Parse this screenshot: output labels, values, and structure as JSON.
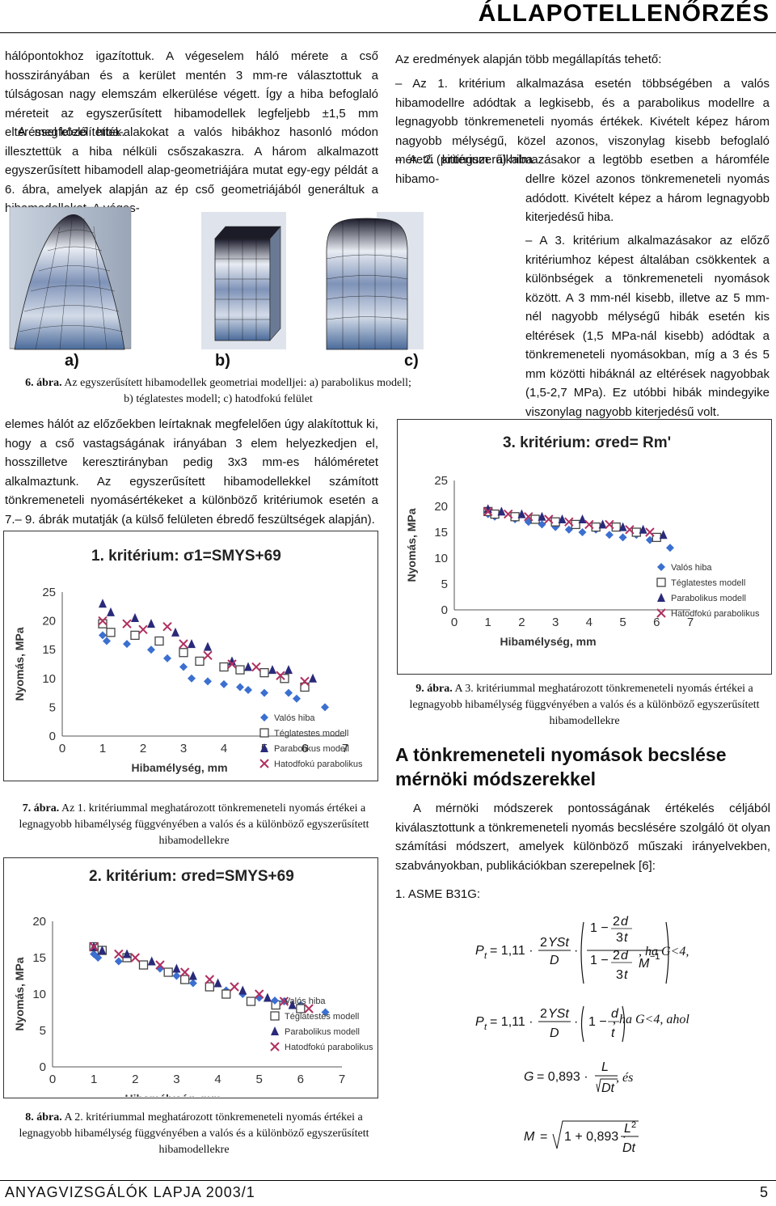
{
  "header": {
    "section": "ÁLLAPOTELLENŐRZÉS"
  },
  "left_col": {
    "para1": "hálópontokhoz igazítottuk. A végeselem háló mérete a cső hosszirányában és a kerület mentén 3 mm-re választottuk a túlságosan nagy elemszám elkerülése végett. Így a hiba befoglaló méreteit az egyszerűsített hibamodellek legfeljebb ±1,5 mm eltéréssel közelítették.",
    "para2": "A megfelelő hiba-alakokat a valós hibákhoz hasonló módon illesztettük a hiba nélküli csőszakaszra. A három alkalmazott egyszerűsített hibamodell alap-geometriájára mutat egy-egy példát a 6. ábra, amelyek alapján az ép cső geometriájából generáltuk a hibamodelleket. A véges-",
    "para3": "elemes hálót az előzőekben leírtaknak megfelelően úgy alakítottuk ki, hogy a cső vastagságának irányában 3 elem helyezkedjen el, hosszilletve keresztirányban pedig 3x3 mm-es hálóméretet alkalmaztunk. Az egyszerűsített hibamodellekkel számított tönkremeneteli nyomásértékeket a különböző kritériumok esetén a 7.– 9. ábrák mutatják (a külső felületen ébredő feszültségek alapján)."
  },
  "fig6": {
    "labels": [
      "a)",
      "b)",
      "c)"
    ],
    "caption_num": "6. ábra.",
    "caption_text": "Az egyszerűsített hibamodellek geometriai modelljei: a) parabolikus modell; b) téglatestes modell; c) hatodfokú felület"
  },
  "right_col": {
    "intro": "Az eredmények alapján több megállapítás tehető:",
    "item1": "– Az 1. kritérium alkalmazása esetén többségében a valós hibamodellre adódtak a legkisebb, és a parabolikus modellre a legnagyobb tönkremeneteli nyomás értékek. Kivételt képez három nagyobb mélységű, közel azonos, viszonylag kisebb befoglaló méretű (pittingszerű) hiba.",
    "item2a": "– A 2. kritérium alkalmazásakor a legtöbb esetben a háromféle hibamo-",
    "item2b": "dellre közel azonos tönkremeneteli nyomás adódott. Kivételt képez a három legnagyobb kiterjedésű hiba.",
    "item3": "– A 3. kritérium alkalmazásakor az előző kritériumhoz képest általában csökkentek a különbségek a tönkremeneteli nyomások között. A 3 mm-nél kisebb, illetve az 5 mm-nél nagyobb mélységű hibák esetén kis eltérések (1,5 MPa-nál kisebb) adódtak a tönkremeneteli nyomásokban, míg a 3 és 5 mm közötti hibáknál az eltérések nagyobbak (1,5-2,7 MPa). Ez utóbbi hibák mindegyike viszonylag nagyobb kiterjedésű volt.",
    "fig9_caption_num": "9. ábra.",
    "fig9_caption_text": "A 3. kritériummal meghatározott tönkremeneteli nyomás értékei a legnagyobb hibamélység függvényében a valós és a különböző egyszerűsített hibamodellekre",
    "heading": "A tönkremeneteli nyomások becslése mérnöki módszerekkel",
    "para_methods": "A mérnöki módszerek pontosságának értékelés céljából kiválasztottunk a tönkremeneteli nyomás becslésére szolgáló öt olyan számítási módszert, amelyek különböző műszaki irányelvekben, szabványokban, publikációkban szerepelnek [6]:",
    "asme": "1. ASME B31G:"
  },
  "fig7": {
    "caption_num": "7. ábra.",
    "caption_text": "Az 1. kritériummal meghatározott tönkremeneteli nyomás értékei a legnagyobb hibamélység függvényében a valós és a különböző egyszerűsített hibamodellekre"
  },
  "fig8": {
    "caption_num": "8. ábra.",
    "caption_text": "A 2. kritériummal meghatározott tönkremeneteli nyomás értékei a legnagyobb hibamélység függvényében a valós és a különböző egyszerűsített hibamodellekre"
  },
  "formulas": {
    "f1_cond": ", ha G<4,",
    "f2_cond": ", ha G<4, ahol",
    "f3_tail": ", és"
  },
  "footer": {
    "journal": "ANYAGVIZSGÁLÓK LAPJA 2003/1",
    "page": "5"
  },
  "chart_data": [
    {
      "type": "scatter",
      "title": "1. kritérium: σ1=SMYS+69",
      "xlabel": "Hibamélység, mm",
      "ylabel": "Nyomás, MPa",
      "xlim": [
        0,
        7
      ],
      "ylim": [
        0,
        25
      ],
      "xticks": [
        0,
        1,
        2,
        3,
        4,
        5,
        6,
        7
      ],
      "yticks": [
        0,
        5,
        10,
        15,
        20,
        25
      ],
      "legend": "bottom-right",
      "series": [
        {
          "name": "Valós hiba",
          "marker": "diamond",
          "color": "#3b6fd0",
          "x": [
            1.0,
            1.1,
            1.6,
            2.2,
            2.6,
            3.0,
            3.2,
            3.6,
            4.0,
            4.4,
            4.6,
            5.0,
            5.6,
            5.8,
            6.5
          ],
          "y": [
            17.5,
            16.5,
            16.0,
            15.0,
            13.5,
            12.0,
            10.0,
            9.5,
            9.0,
            8.5,
            8.0,
            7.5,
            7.5,
            6.5,
            5.0
          ]
        },
        {
          "name": "Téglatestes modell",
          "marker": "square-open",
          "color": "#444444",
          "x": [
            1.0,
            1.2,
            1.8,
            2.4,
            3.0,
            3.4,
            4.0,
            4.4,
            5.0,
            5.5,
            6.0
          ],
          "y": [
            19.5,
            18.0,
            17.5,
            16.5,
            14.5,
            13.0,
            12.0,
            11.5,
            11.0,
            10.0,
            8.5
          ]
        },
        {
          "name": "Parabolikus modell",
          "marker": "triangle",
          "color": "#2a2a7a",
          "x": [
            1.0,
            1.2,
            1.8,
            2.2,
            2.8,
            3.2,
            3.6,
            4.2,
            4.6,
            5.2,
            5.6,
            6.2
          ],
          "y": [
            23.0,
            21.5,
            20.5,
            19.5,
            18.0,
            16.0,
            15.5,
            13.0,
            12.0,
            11.5,
            11.5,
            10.0
          ]
        },
        {
          "name": "Hatodfokú parabolikus",
          "marker": "x",
          "color": "#b03060",
          "x": [
            1.0,
            1.6,
            2.0,
            2.6,
            3.0,
            3.6,
            4.2,
            4.8,
            5.4,
            6.0
          ],
          "y": [
            20.0,
            19.5,
            18.5,
            19.0,
            16.0,
            14.0,
            12.5,
            12.0,
            10.5,
            9.5
          ]
        }
      ]
    },
    {
      "type": "scatter",
      "title": "2. kritérium: σred=SMYS+69",
      "xlabel": "Hibamélység, mm",
      "ylabel": "Nyomás, MPa",
      "xlim": [
        0,
        7
      ],
      "ylim": [
        0,
        20
      ],
      "xticks": [
        0,
        1,
        2,
        3,
        4,
        5,
        6,
        7
      ],
      "yticks": [
        0,
        5,
        10,
        15,
        20
      ],
      "legend": "bottom-right",
      "series": [
        {
          "name": "Valós hiba",
          "marker": "diamond",
          "color": "#3b6fd0",
          "x": [
            1.0,
            1.1,
            1.6,
            2.2,
            2.6,
            3.0,
            3.4,
            3.8,
            4.2,
            4.6,
            5.0,
            5.6,
            6.0,
            6.6
          ],
          "y": [
            15.5,
            15.0,
            14.5,
            14.0,
            13.5,
            12.5,
            11.5,
            11.0,
            10.5,
            10.0,
            9.5,
            9.0,
            8.5,
            7.5
          ]
        },
        {
          "name": "Téglatestes modell",
          "marker": "square-open",
          "color": "#444444",
          "x": [
            1.0,
            1.2,
            1.8,
            2.2,
            2.8,
            3.2,
            3.8,
            4.2,
            4.8,
            5.4,
            6.0
          ],
          "y": [
            16.5,
            16.0,
            15.0,
            14.0,
            13.0,
            12.0,
            11.0,
            10.0,
            9.0,
            8.5,
            8.0
          ]
        },
        {
          "name": "Parabolikus modell",
          "marker": "triangle",
          "color": "#2a2a7a",
          "x": [
            1.0,
            1.2,
            1.8,
            2.4,
            3.0,
            3.4,
            4.0,
            4.6,
            5.2,
            5.8
          ],
          "y": [
            16.5,
            16.0,
            15.5,
            14.5,
            13.5,
            12.5,
            11.5,
            10.5,
            9.5,
            8.5
          ]
        },
        {
          "name": "Hatodfokú parabolikus",
          "marker": "x",
          "color": "#b03060",
          "x": [
            1.0,
            1.6,
            2.0,
            2.6,
            3.2,
            3.8,
            4.4,
            5.0,
            5.6,
            6.2
          ],
          "y": [
            16.5,
            15.5,
            15.0,
            14.0,
            13.0,
            12.0,
            11.0,
            10.0,
            9.0,
            8.0
          ]
        }
      ]
    },
    {
      "type": "scatter",
      "title": "3. kritérium: σred= Rm'",
      "xlabel": "Hibamélység, mm",
      "ylabel": "Nyomás, MPa",
      "xlim": [
        0,
        7
      ],
      "ylim": [
        0,
        25
      ],
      "xticks": [
        0,
        1,
        2,
        3,
        4,
        5,
        6,
        7
      ],
      "yticks": [
        0,
        5,
        10,
        15,
        20,
        25
      ],
      "legend": "bottom-right",
      "series": [
        {
          "name": "Valós hiba",
          "marker": "diamond",
          "color": "#3b6fd0",
          "x": [
            1.0,
            1.2,
            1.8,
            2.2,
            2.6,
            3.0,
            3.4,
            3.8,
            4.2,
            4.6,
            5.0,
            5.4,
            5.8,
            6.4
          ],
          "y": [
            18.5,
            18.0,
            17.5,
            17.0,
            16.5,
            16.0,
            15.5,
            15.0,
            15.5,
            14.5,
            14.0,
            14.5,
            13.5,
            12.0
          ]
        },
        {
          "name": "Téglatestes modell",
          "marker": "square-open",
          "color": "#444444",
          "x": [
            1.0,
            1.2,
            1.8,
            2.4,
            3.0,
            3.6,
            4.2,
            4.8,
            5.4,
            6.0
          ],
          "y": [
            19.0,
            18.5,
            18.0,
            17.5,
            17.0,
            16.5,
            16.0,
            16.0,
            15.0,
            14.0
          ]
        },
        {
          "name": "Parabolikus modell",
          "marker": "triangle",
          "color": "#2a2a7a",
          "x": [
            1.0,
            1.4,
            2.0,
            2.6,
            3.2,
            3.8,
            4.4,
            5.0,
            5.6,
            6.2
          ],
          "y": [
            19.5,
            19.0,
            18.5,
            18.0,
            17.5,
            17.5,
            16.5,
            16.0,
            15.5,
            14.5
          ]
        },
        {
          "name": "Hatodfokú parabolikus",
          "marker": "x",
          "color": "#b03060",
          "x": [
            1.0,
            1.6,
            2.2,
            2.8,
            3.4,
            4.0,
            4.6,
            5.2,
            5.8
          ],
          "y": [
            19.0,
            18.5,
            18.0,
            17.5,
            17.0,
            16.5,
            16.5,
            15.5,
            15.0
          ]
        }
      ]
    }
  ]
}
